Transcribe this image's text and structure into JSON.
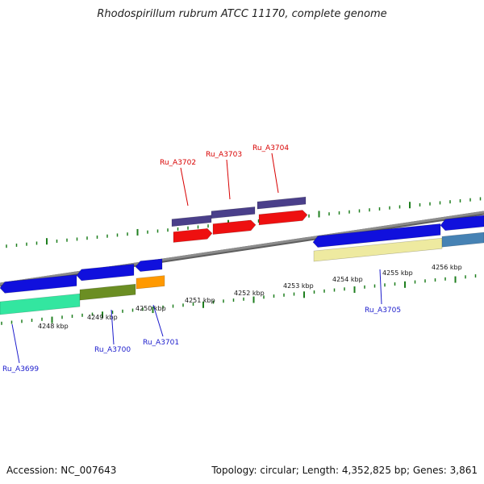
{
  "header": {
    "title": "Rhodospirillum rubrum ATCC 11170, complete genome"
  },
  "footer": {
    "accession": "Accession: NC_007643",
    "summary": "Topology: circular; Length: 4,352,825 bp; Genes: 3,861"
  },
  "scale": {
    "unit": "kbp",
    "ticks": [
      "4248 kbp",
      "4249 kbp",
      "4250 kbp",
      "4251 kbp",
      "4252 kbp",
      "4253 kbp",
      "4254 kbp",
      "4255 kbp",
      "4256 kbp"
    ]
  },
  "genes": [
    {
      "id": "Ru_A3699",
      "strand": "minus",
      "color": "#1b1bcc"
    },
    {
      "id": "Ru_A3700",
      "strand": "minus",
      "color": "#1b1bcc"
    },
    {
      "id": "Ru_A3701",
      "strand": "minus",
      "color": "#1b1bcc"
    },
    {
      "id": "Ru_A3702",
      "strand": "plus",
      "color": "#d80000"
    },
    {
      "id": "Ru_A3703",
      "strand": "plus",
      "color": "#d80000"
    },
    {
      "id": "Ru_A3704",
      "strand": "plus",
      "color": "#d80000"
    },
    {
      "id": "Ru_A3705",
      "strand": "minus",
      "color": "#1b1bcc"
    }
  ],
  "colors": {
    "backbone": "#8c8c8c",
    "tick": "#1f7f1f",
    "forward_cds": "#ee1010",
    "forward_band": "#4a3f8a",
    "reverse_cds": "#1010dd",
    "label_forward": "#d80000",
    "label_reverse": "#1b1bcc"
  }
}
